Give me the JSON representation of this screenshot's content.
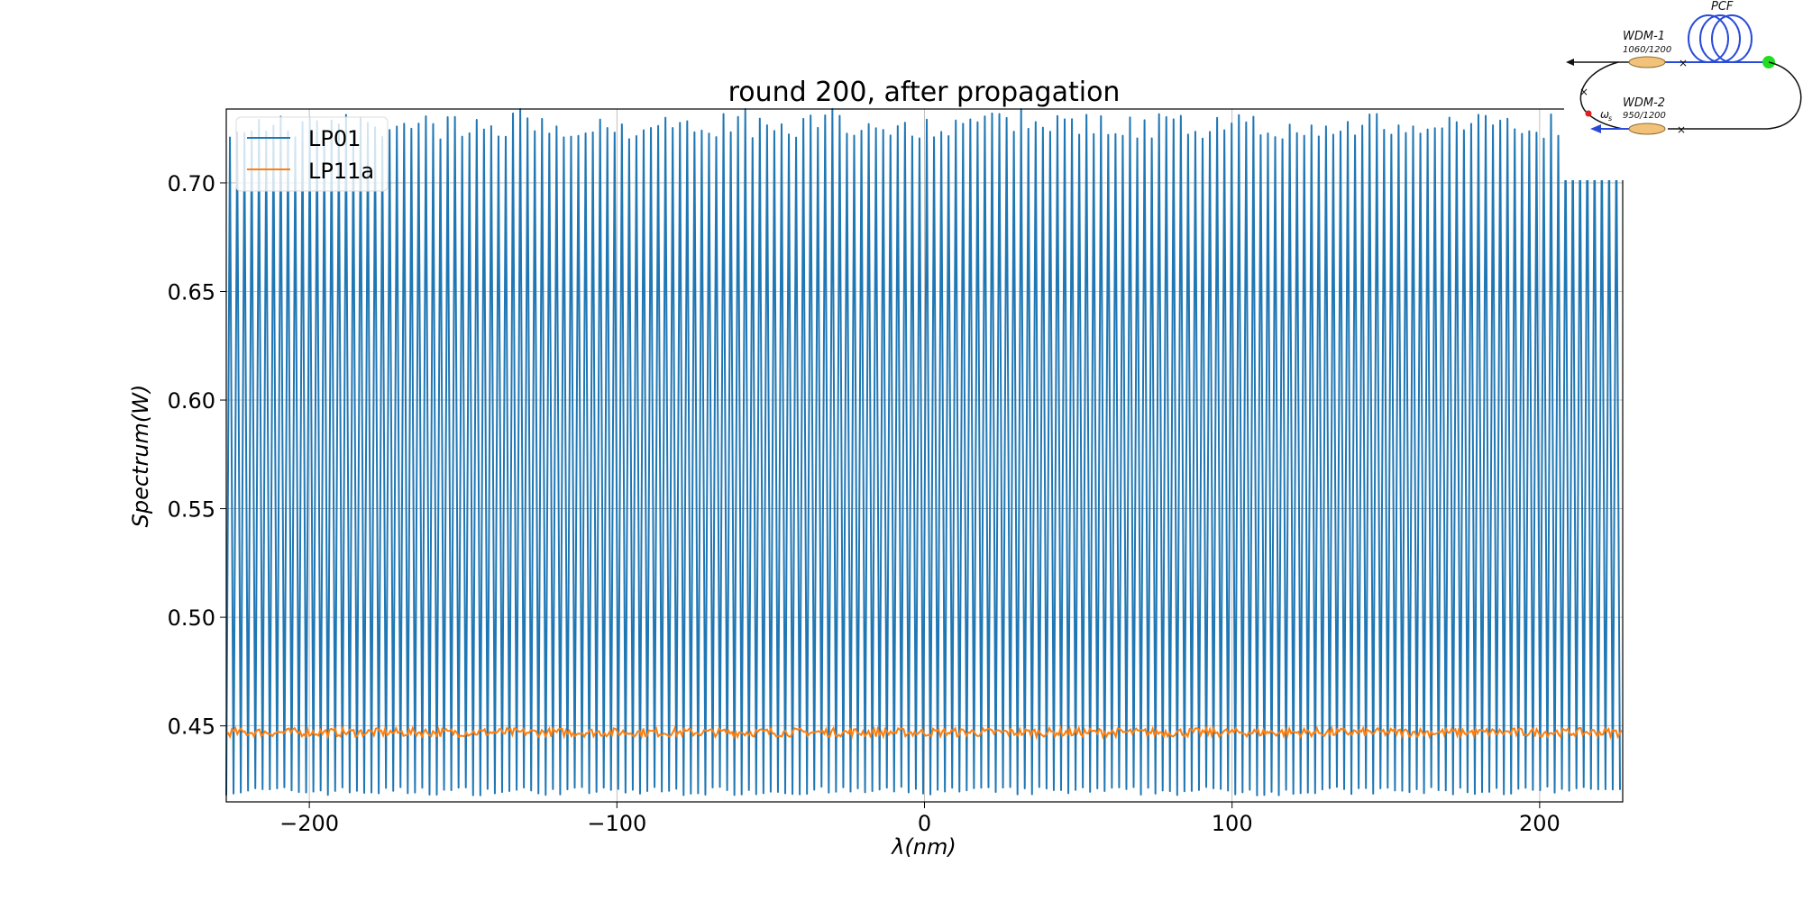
{
  "chart_data": {
    "type": "line",
    "title": "round 200, after propagation",
    "xlabel": "λ(nm)",
    "ylabel": "Spectrum(W)",
    "xlim": [
      -227,
      227
    ],
    "ylim": [
      0.415,
      0.734
    ],
    "xticks": [
      -200,
      -100,
      0,
      100,
      200
    ],
    "xtick_labels": [
      "−200",
      "−100",
      "0",
      "100",
      "200"
    ],
    "yticks": [
      0.45,
      0.5,
      0.55,
      0.6,
      0.65,
      0.7
    ],
    "ytick_labels": [
      "0.45",
      "0.50",
      "0.55",
      "0.60",
      "0.65",
      "0.70"
    ],
    "grid": true,
    "legend_position": "upper-left",
    "series": [
      {
        "name": "LP01",
        "color": "#1f77b4",
        "description": "dense periodic oscillation",
        "x_range": [
          -227,
          227
        ],
        "period": 2.36,
        "min": 0.418,
        "max": 0.732
      },
      {
        "name": "LP11a",
        "color": "#ff7f0e",
        "x_range": [
          -227,
          227
        ],
        "mean": 0.447,
        "noise": 0.002
      }
    ]
  },
  "inset": {
    "pcf_label": "PCF",
    "wdm1_label": "WDM-1",
    "wdm1_sub": "1060/1200",
    "wdm2_label": "WDM-2",
    "wdm2_sub": "950/1200",
    "omega_label": "ω",
    "omega_sub": "s"
  }
}
